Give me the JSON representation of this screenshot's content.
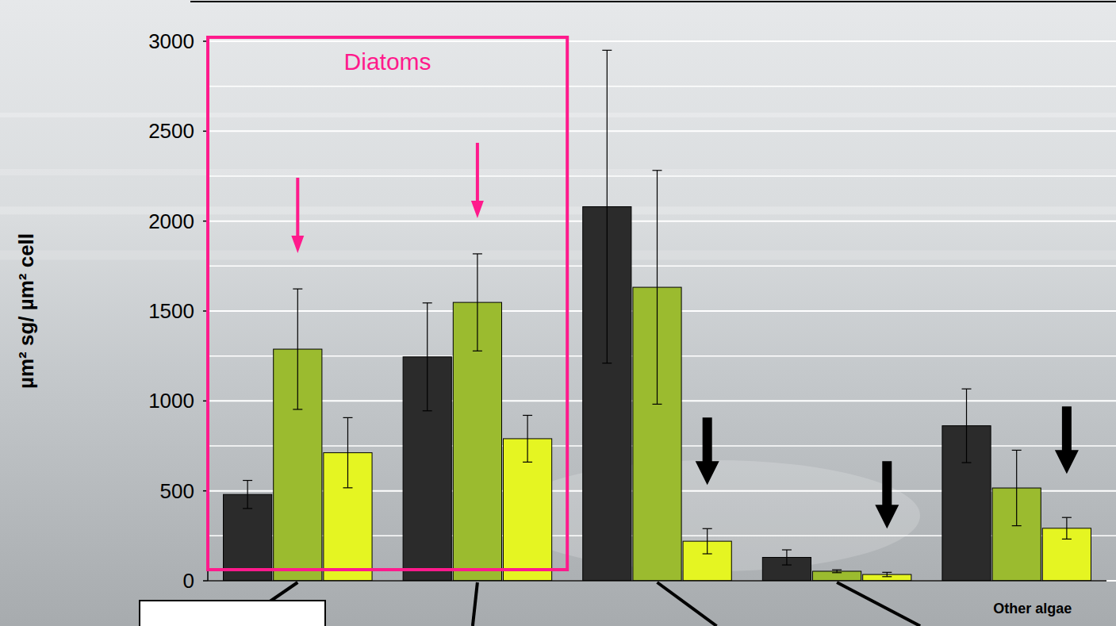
{
  "chart_data": {
    "type": "bar",
    "ylabel": "µm² sg/ µm² cell",
    "annotation": "Diatoms",
    "categories": [
      null,
      null,
      null,
      null,
      "Other algae"
    ],
    "series": [
      {
        "color": "#2b2b2b",
        "values": [
          480,
          1245,
          2080,
          130,
          862
        ],
        "errors": [
          78,
          300,
          870,
          42,
          205
        ]
      },
      {
        "color": "#9bbb2f",
        "values": [
          1288,
          1548,
          1632,
          53,
          516
        ],
        "errors": [
          335,
          270,
          650,
          8,
          210
        ]
      },
      {
        "color": "#e5f522",
        "values": [
          712,
          790,
          220,
          35,
          292
        ],
        "errors": [
          195,
          130,
          70,
          12,
          60
        ]
      }
    ],
    "ylim": [
      0,
      3000
    ],
    "yticks": [
      0,
      500,
      1000,
      1500,
      2000,
      2500,
      3000
    ],
    "grid": true
  }
}
